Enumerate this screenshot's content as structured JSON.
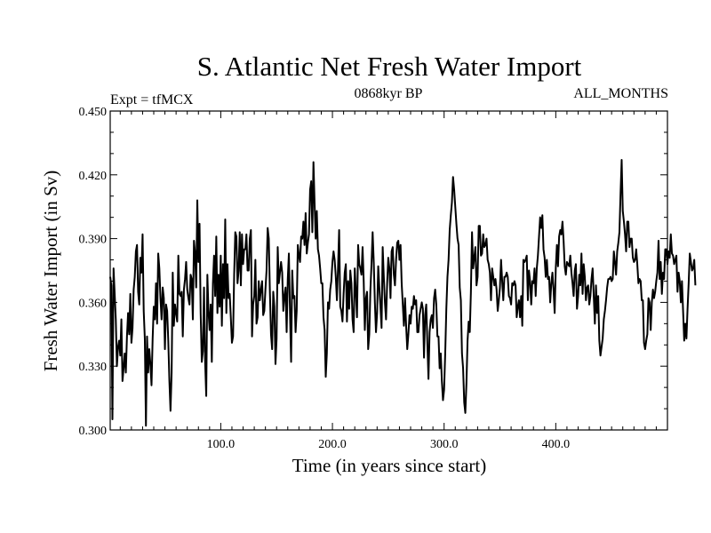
{
  "chart_data": {
    "type": "line",
    "title": "S. Atlantic Net Fresh Water Import",
    "subtitle_left": "Expt = tfMCX",
    "subtitle_center": "0868kyr BP",
    "subtitle_right": "ALL_MONTHS",
    "xlabel": "Time (in years since start)",
    "ylabel": "Fresh Water Import (in Sv)",
    "xlim": [
      1,
      500
    ],
    "ylim": [
      0.3,
      0.45
    ],
    "x_ticks": [
      100,
      200,
      300,
      400
    ],
    "x_tick_labels": [
      "100.0",
      "200.0",
      "300.0",
      "400.0"
    ],
    "y_ticks": [
      0.3,
      0.33,
      0.36,
      0.39,
      0.42,
      0.45
    ],
    "y_tick_labels": [
      "0.300",
      "0.330",
      "0.360",
      "0.390",
      "0.420",
      "0.450"
    ],
    "grid": false,
    "series": [
      {
        "name": "S. Atlantic Net Fresh Water Import",
        "color": "#000000",
        "x_start": 1,
        "x_step": 1,
        "values": [
          0.372,
          0.368,
          0.305,
          0.376,
          0.364,
          0.352,
          0.33,
          0.339,
          0.342,
          0.335,
          0.352,
          0.323,
          0.329,
          0.336,
          0.327,
          0.344,
          0.355,
          0.345,
          0.364,
          0.341,
          0.348,
          0.366,
          0.372,
          0.384,
          0.387,
          0.365,
          0.359,
          0.381,
          0.374,
          0.392,
          0.356,
          0.343,
          0.302,
          0.344,
          0.327,
          0.338,
          0.331,
          0.321,
          0.343,
          0.358,
          0.352,
          0.369,
          0.35,
          0.383,
          0.376,
          0.362,
          0.352,
          0.367,
          0.362,
          0.338,
          0.359,
          0.356,
          0.342,
          0.323,
          0.309,
          0.327,
          0.374,
          0.349,
          0.359,
          0.355,
          0.351,
          0.382,
          0.364,
          0.363,
          0.365,
          0.344,
          0.366,
          0.371,
          0.379,
          0.366,
          0.362,
          0.359,
          0.373,
          0.371,
          0.352,
          0.389,
          0.383,
          0.367,
          0.408,
          0.379,
          0.397,
          0.355,
          0.332,
          0.337,
          0.367,
          0.332,
          0.316,
          0.373,
          0.356,
          0.347,
          0.359,
          0.332,
          0.369,
          0.382,
          0.363,
          0.391,
          0.355,
          0.373,
          0.358,
          0.382,
          0.349,
          0.378,
          0.362,
          0.399,
          0.355,
          0.378,
          0.362,
          0.364,
          0.353,
          0.341,
          0.344,
          0.373,
          0.393,
          0.391,
          0.369,
          0.375,
          0.393,
          0.368,
          0.392,
          0.378,
          0.385,
          0.385,
          0.392,
          0.375,
          0.375,
          0.39,
          0.394,
          0.344,
          0.359,
          0.363,
          0.38,
          0.35,
          0.353,
          0.37,
          0.361,
          0.366,
          0.37,
          0.354,
          0.356,
          0.366,
          0.375,
          0.395,
          0.39,
          0.365,
          0.345,
          0.338,
          0.365,
          0.358,
          0.331,
          0.343,
          0.386,
          0.369,
          0.374,
          0.379,
          0.374,
          0.356,
          0.363,
          0.367,
          0.346,
          0.371,
          0.383,
          0.355,
          0.332,
          0.375,
          0.362,
          0.363,
          0.346,
          0.356,
          0.387,
          0.382,
          0.379,
          0.391,
          0.39,
          0.398,
          0.387,
          0.402,
          0.383,
          0.388,
          0.392,
          0.413,
          0.417,
          0.393,
          0.426,
          0.407,
          0.39,
          0.403,
          0.385,
          0.382,
          0.376,
          0.369,
          0.369,
          0.353,
          0.347,
          0.325,
          0.336,
          0.36,
          0.357,
          0.366,
          0.37,
          0.379,
          0.384,
          0.38,
          0.372,
          0.361,
          0.376,
          0.394,
          0.358,
          0.356,
          0.351,
          0.364,
          0.374,
          0.378,
          0.351,
          0.37,
          0.357,
          0.375,
          0.369,
          0.352,
          0.346,
          0.376,
          0.365,
          0.353,
          0.387,
          0.378,
          0.376,
          0.373,
          0.386,
          0.37,
          0.347,
          0.362,
          0.365,
          0.338,
          0.345,
          0.366,
          0.378,
          0.393,
          0.379,
          0.36,
          0.346,
          0.355,
          0.377,
          0.367,
          0.358,
          0.348,
          0.386,
          0.372,
          0.36,
          0.352,
          0.369,
          0.381,
          0.376,
          0.362,
          0.384,
          0.386,
          0.373,
          0.368,
          0.38,
          0.388,
          0.389,
          0.38,
          0.387,
          0.369,
          0.359,
          0.349,
          0.362,
          0.349,
          0.338,
          0.345,
          0.354,
          0.35,
          0.358,
          0.357,
          0.363,
          0.359,
          0.361,
          0.346,
          0.346,
          0.354,
          0.357,
          0.36,
          0.357,
          0.334,
          0.354,
          0.359,
          0.341,
          0.324,
          0.346,
          0.352,
          0.354,
          0.348,
          0.362,
          0.366,
          0.359,
          0.344,
          0.344,
          0.329,
          0.336,
          0.323,
          0.314,
          0.319,
          0.336,
          0.357,
          0.372,
          0.38,
          0.394,
          0.401,
          0.407,
          0.419,
          0.413,
          0.405,
          0.397,
          0.39,
          0.387,
          0.367,
          0.361,
          0.336,
          0.329,
          0.313,
          0.308,
          0.322,
          0.342,
          0.351,
          0.346,
          0.365,
          0.393,
          0.376,
          0.381,
          0.386,
          0.368,
          0.372,
          0.396,
          0.396,
          0.382,
          0.383,
          0.392,
          0.386,
          0.387,
          0.39,
          0.38,
          0.378,
          0.374,
          0.361,
          0.376,
          0.372,
          0.368,
          0.371,
          0.366,
          0.356,
          0.361,
          0.367,
          0.38,
          0.37,
          0.361,
          0.372,
          0.372,
          0.374,
          0.372,
          0.363,
          0.362,
          0.359,
          0.369,
          0.368,
          0.37,
          0.368,
          0.353,
          0.358,
          0.361,
          0.353,
          0.363,
          0.349,
          0.38,
          0.379,
          0.38,
          0.382,
          0.361,
          0.375,
          0.37,
          0.359,
          0.37,
          0.369,
          0.376,
          0.363,
          0.376,
          0.382,
          0.391,
          0.4,
          0.395,
          0.401,
          0.385,
          0.381,
          0.372,
          0.38,
          0.371,
          0.372,
          0.36,
          0.369,
          0.374,
          0.366,
          0.355,
          0.376,
          0.387,
          0.377,
          0.391,
          0.394,
          0.392,
          0.398,
          0.389,
          0.377,
          0.373,
          0.379,
          0.378,
          0.377,
          0.382,
          0.374,
          0.369,
          0.363,
          0.375,
          0.378,
          0.357,
          0.363,
          0.373,
          0.368,
          0.383,
          0.364,
          0.378,
          0.372,
          0.361,
          0.367,
          0.368,
          0.359,
          0.363,
          0.371,
          0.376,
          0.363,
          0.35,
          0.368,
          0.355,
          0.363,
          0.342,
          0.335,
          0.339,
          0.343,
          0.352,
          0.356,
          0.361,
          0.367,
          0.371,
          0.371,
          0.372,
          0.37,
          0.371,
          0.384,
          0.379,
          0.373,
          0.384,
          0.388,
          0.393,
          0.411,
          0.427,
          0.403,
          0.398,
          0.392,
          0.384,
          0.398,
          0.398,
          0.386,
          0.39,
          0.39,
          0.381,
          0.379,
          0.38,
          0.385,
          0.378,
          0.369,
          0.371,
          0.37,
          0.361,
          0.361,
          0.341,
          0.338,
          0.342,
          0.345,
          0.362,
          0.36,
          0.347,
          0.36,
          0.366,
          0.362,
          0.365,
          0.37,
          0.374,
          0.389,
          0.371,
          0.379,
          0.364,
          0.374,
          0.371,
          0.385,
          0.385,
          0.378,
          0.384,
          0.381,
          0.392,
          0.383,
          0.382,
          0.378,
          0.38,
          0.382,
          0.365,
          0.374,
          0.37,
          0.36,
          0.37,
          0.356,
          0.342,
          0.35,
          0.343,
          0.357,
          0.369,
          0.383,
          0.379,
          0.375,
          0.376,
          0.38,
          0.368
        ]
      }
    ]
  }
}
